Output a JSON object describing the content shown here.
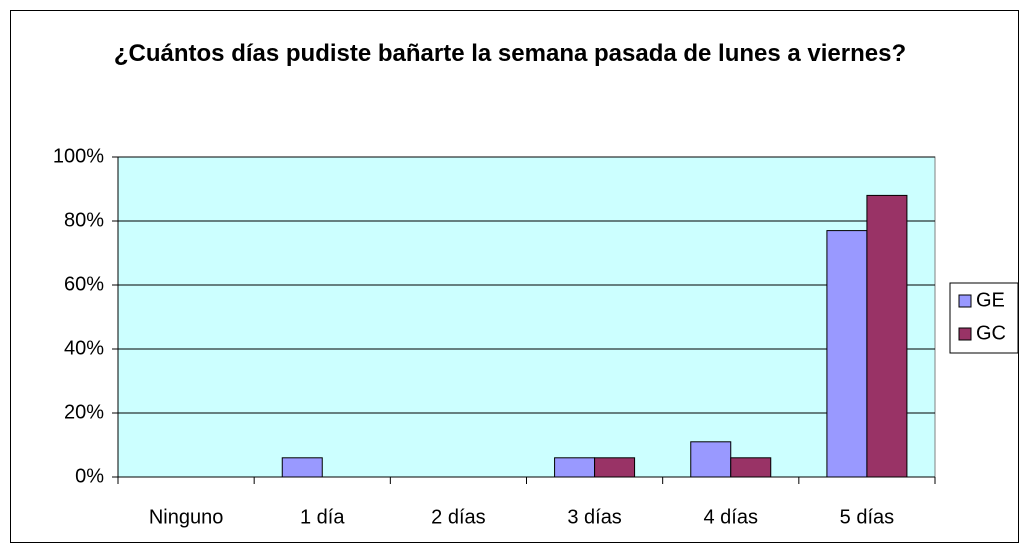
{
  "chart_data": {
    "type": "bar",
    "title": "¿Cuántos días pudiste bañarte la semana pasada de lunes a viernes?",
    "categories": [
      "Ninguno",
      "1 día",
      "2 días",
      "3 días",
      "4 días",
      "5 días"
    ],
    "series": [
      {
        "name": "GE",
        "color": "#9999ff",
        "values": [
          0,
          6,
          0,
          6,
          11,
          77
        ]
      },
      {
        "name": "GC",
        "color": "#993366",
        "values": [
          0,
          0,
          0,
          6,
          6,
          88
        ]
      }
    ],
    "ylim": [
      0,
      100
    ],
    "yticks": [
      {
        "value": 0,
        "label": "0%"
      },
      {
        "value": 20,
        "label": "20%"
      },
      {
        "value": 40,
        "label": "40%"
      },
      {
        "value": 60,
        "label": "60%"
      },
      {
        "value": 80,
        "label": "80%"
      },
      {
        "value": 100,
        "label": "100%"
      }
    ],
    "grid": true,
    "legend": "right",
    "plot_background": "#ccffff"
  }
}
